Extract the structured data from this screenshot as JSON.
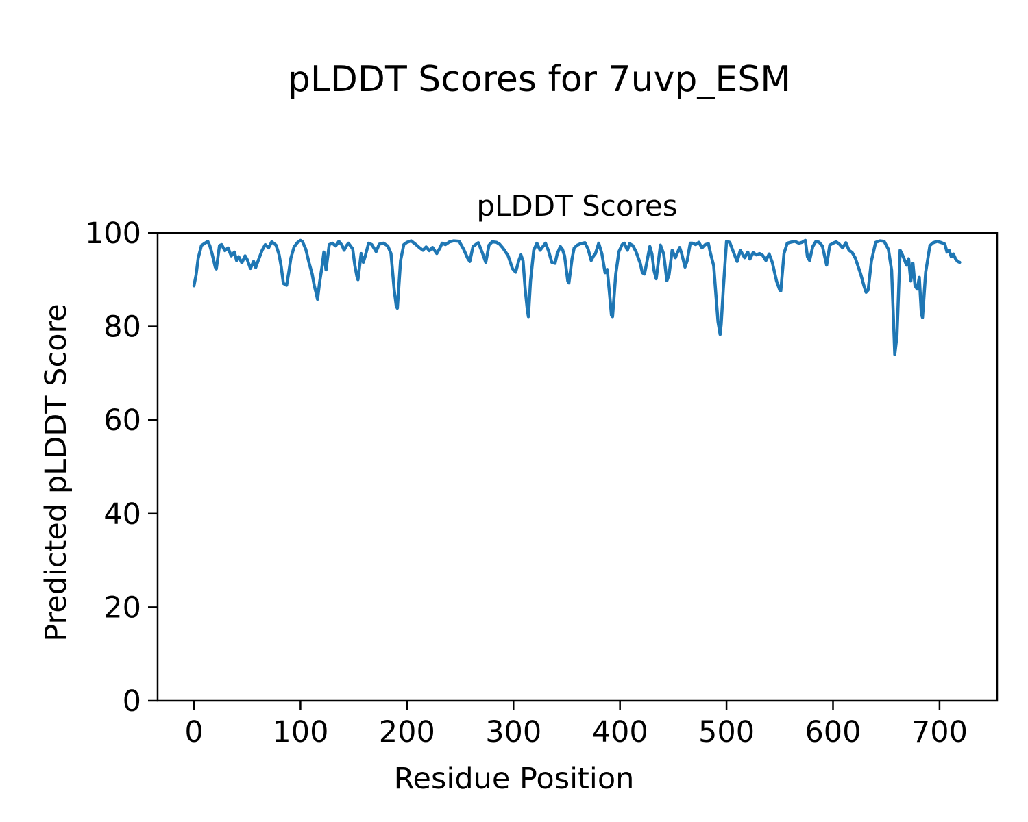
{
  "figure": {
    "suptitle": "pLDDT Scores for 7uvp_ESM",
    "background_color": "#ffffff",
    "text_color": "#000000"
  },
  "chart_data": {
    "type": "line",
    "title": "pLDDT Scores",
    "xlabel": "Residue Position",
    "ylabel": "Predicted pLDDT Score",
    "xlim": [
      -34.1,
      754.1
    ],
    "ylim": [
      0,
      100
    ],
    "xticks": [
      0,
      100,
      200,
      300,
      400,
      500,
      600,
      700
    ],
    "yticks": [
      0,
      20,
      40,
      60,
      80,
      100
    ],
    "grid": false,
    "legend_position": "none",
    "line_color": "#1f77b4",
    "spine_color": "#000000",
    "line_width": 4.5,
    "series": [
      {
        "name": "pLDDT",
        "points": [
          [
            0,
            88.7
          ],
          [
            2,
            91.0
          ],
          [
            4,
            94.6
          ],
          [
            7,
            97.3
          ],
          [
            9,
            97.6
          ],
          [
            13,
            98.2
          ],
          [
            15,
            97.2
          ],
          [
            17,
            95.6
          ],
          [
            20,
            92.7
          ],
          [
            21,
            92.3
          ],
          [
            24,
            97.3
          ],
          [
            26,
            97.5
          ],
          [
            29,
            96.2
          ],
          [
            32,
            96.8
          ],
          [
            35,
            95.1
          ],
          [
            38,
            95.9
          ],
          [
            40,
            94.1
          ],
          [
            42,
            94.9
          ],
          [
            45,
            93.6
          ],
          [
            48,
            95.1
          ],
          [
            50,
            94.3
          ],
          [
            53,
            92.4
          ],
          [
            56,
            93.9
          ],
          [
            58,
            92.6
          ],
          [
            61,
            94.5
          ],
          [
            64,
            96.3
          ],
          [
            67,
            97.5
          ],
          [
            70,
            96.8
          ],
          [
            73,
            98.1
          ],
          [
            77,
            97.4
          ],
          [
            80,
            95.3
          ],
          [
            82,
            92.7
          ],
          [
            84,
            89.2
          ],
          [
            87,
            88.8
          ],
          [
            89,
            91.5
          ],
          [
            91,
            94.6
          ],
          [
            94,
            97.0
          ],
          [
            97,
            97.9
          ],
          [
            100,
            98.4
          ],
          [
            102,
            98.1
          ],
          [
            105,
            96.5
          ],
          [
            108,
            93.7
          ],
          [
            111,
            91.2
          ],
          [
            113,
            88.7
          ],
          [
            115,
            86.9
          ],
          [
            116,
            85.8
          ],
          [
            118,
            89.5
          ],
          [
            120,
            92.4
          ],
          [
            122,
            95.9
          ],
          [
            124,
            92.1
          ],
          [
            127,
            97.5
          ],
          [
            130,
            97.8
          ],
          [
            133,
            97.2
          ],
          [
            136,
            98.2
          ],
          [
            139,
            97.4
          ],
          [
            141,
            96.3
          ],
          [
            143,
            97.2
          ],
          [
            145,
            97.8
          ],
          [
            149,
            96.6
          ],
          [
            151,
            93.1
          ],
          [
            153,
            90.7
          ],
          [
            154,
            90.0
          ],
          [
            157,
            95.6
          ],
          [
            159,
            93.7
          ],
          [
            161,
            95.2
          ],
          [
            164,
            97.8
          ],
          [
            167,
            97.5
          ],
          [
            171,
            96.0
          ],
          [
            174,
            97.6
          ],
          [
            178,
            97.8
          ],
          [
            182,
            97.2
          ],
          [
            185,
            95.6
          ],
          [
            188,
            87.8
          ],
          [
            190,
            84.3
          ],
          [
            191,
            83.9
          ],
          [
            194,
            94.1
          ],
          [
            197,
            97.5
          ],
          [
            200,
            98.0
          ],
          [
            204,
            98.3
          ],
          [
            209,
            97.4
          ],
          [
            212,
            96.8
          ],
          [
            215,
            96.3
          ],
          [
            218,
            97.0
          ],
          [
            221,
            96.2
          ],
          [
            224,
            96.9
          ],
          [
            228,
            95.6
          ],
          [
            231,
            96.8
          ],
          [
            233,
            97.8
          ],
          [
            236,
            97.5
          ],
          [
            240,
            98.1
          ],
          [
            244,
            98.3
          ],
          [
            249,
            98.2
          ],
          [
            253,
            96.6
          ],
          [
            257,
            94.6
          ],
          [
            259,
            93.9
          ],
          [
            262,
            97.1
          ],
          [
            265,
            97.6
          ],
          [
            267,
            97.9
          ],
          [
            271,
            95.6
          ],
          [
            274,
            93.7
          ],
          [
            277,
            97.4
          ],
          [
            280,
            98.1
          ],
          [
            284,
            98.0
          ],
          [
            287,
            97.6
          ],
          [
            290,
            96.8
          ],
          [
            295,
            95.1
          ],
          [
            299,
            92.4
          ],
          [
            302,
            91.6
          ],
          [
            305,
            94.1
          ],
          [
            307,
            95.3
          ],
          [
            309,
            94.0
          ],
          [
            311,
            88.0
          ],
          [
            313,
            83.5
          ],
          [
            314,
            82.1
          ],
          [
            316,
            89.7
          ],
          [
            319,
            96.3
          ],
          [
            322,
            97.8
          ],
          [
            325,
            96.3
          ],
          [
            328,
            97.2
          ],
          [
            330,
            97.8
          ],
          [
            333,
            96.1
          ],
          [
            336,
            93.7
          ],
          [
            339,
            93.5
          ],
          [
            341,
            95.5
          ],
          [
            344,
            97.1
          ],
          [
            346,
            96.5
          ],
          [
            348,
            95.1
          ],
          [
            351,
            89.7
          ],
          [
            352,
            89.3
          ],
          [
            355,
            94.5
          ],
          [
            357,
            96.8
          ],
          [
            360,
            97.4
          ],
          [
            363,
            97.7
          ],
          [
            367,
            97.9
          ],
          [
            370,
            96.6
          ],
          [
            373,
            94.1
          ],
          [
            375,
            95.0
          ],
          [
            377,
            95.6
          ],
          [
            380,
            97.8
          ],
          [
            383,
            95.6
          ],
          [
            386,
            91.5
          ],
          [
            388,
            92.2
          ],
          [
            390,
            87.5
          ],
          [
            392,
            82.4
          ],
          [
            393,
            82.1
          ],
          [
            396,
            91.2
          ],
          [
            399,
            96.0
          ],
          [
            402,
            97.5
          ],
          [
            404,
            97.8
          ],
          [
            407,
            96.3
          ],
          [
            409,
            97.7
          ],
          [
            412,
            97.3
          ],
          [
            415,
            96.0
          ],
          [
            419,
            93.5
          ],
          [
            421,
            91.5
          ],
          [
            423,
            91.2
          ],
          [
            425,
            93.5
          ],
          [
            428,
            97.1
          ],
          [
            430,
            95.5
          ],
          [
            432,
            91.9
          ],
          [
            434,
            90.2
          ],
          [
            438,
            97.4
          ],
          [
            441,
            95.5
          ],
          [
            444,
            89.8
          ],
          [
            446,
            91.0
          ],
          [
            449,
            96.3
          ],
          [
            452,
            94.7
          ],
          [
            456,
            96.9
          ],
          [
            458,
            95.5
          ],
          [
            461,
            92.7
          ],
          [
            463,
            94.0
          ],
          [
            466,
            97.8
          ],
          [
            468,
            97.8
          ],
          [
            471,
            97.5
          ],
          [
            474,
            98.0
          ],
          [
            477,
            96.8
          ],
          [
            480,
            97.5
          ],
          [
            483,
            97.7
          ],
          [
            485,
            95.6
          ],
          [
            488,
            93.0
          ],
          [
            490,
            87.0
          ],
          [
            492,
            81.0
          ],
          [
            494,
            78.3
          ],
          [
            495,
            80.5
          ],
          [
            497,
            88.0
          ],
          [
            500,
            98.2
          ],
          [
            503,
            98.0
          ],
          [
            507,
            95.6
          ],
          [
            510,
            93.9
          ],
          [
            513,
            96.3
          ],
          [
            517,
            94.7
          ],
          [
            520,
            95.9
          ],
          [
            522,
            94.4
          ],
          [
            525,
            95.8
          ],
          [
            528,
            95.3
          ],
          [
            531,
            95.6
          ],
          [
            534,
            95.2
          ],
          [
            537,
            94.1
          ],
          [
            540,
            95.5
          ],
          [
            543,
            93.7
          ],
          [
            547,
            89.7
          ],
          [
            550,
            87.8
          ],
          [
            551,
            87.6
          ],
          [
            554,
            95.6
          ],
          [
            557,
            97.8
          ],
          [
            560,
            98.0
          ],
          [
            564,
            98.2
          ],
          [
            568,
            97.8
          ],
          [
            571,
            98.0
          ],
          [
            574,
            98.4
          ],
          [
            576,
            94.9
          ],
          [
            578,
            94.1
          ],
          [
            581,
            97.1
          ],
          [
            584,
            98.2
          ],
          [
            587,
            98.0
          ],
          [
            590,
            97.2
          ],
          [
            594,
            93.1
          ],
          [
            597,
            97.4
          ],
          [
            600,
            97.8
          ],
          [
            603,
            98.1
          ],
          [
            606,
            97.6
          ],
          [
            609,
            96.8
          ],
          [
            612,
            97.9
          ],
          [
            615,
            96.3
          ],
          [
            618,
            95.8
          ],
          [
            621,
            94.6
          ],
          [
            626,
            91.2
          ],
          [
            629,
            88.7
          ],
          [
            631,
            87.3
          ],
          [
            633,
            87.8
          ],
          [
            636,
            94.0
          ],
          [
            640,
            98.0
          ],
          [
            644,
            98.3
          ],
          [
            648,
            98.2
          ],
          [
            652,
            96.5
          ],
          [
            655,
            92.0
          ],
          [
            657,
            80.0
          ],
          [
            658,
            74.0
          ],
          [
            660,
            78.0
          ],
          [
            663,
            96.3
          ],
          [
            665,
            95.4
          ],
          [
            667,
            94.3
          ],
          [
            669,
            93.1
          ],
          [
            671,
            94.5
          ],
          [
            673,
            89.7
          ],
          [
            675,
            93.5
          ],
          [
            677,
            88.7
          ],
          [
            679,
            88.0
          ],
          [
            681,
            90.5
          ],
          [
            683,
            82.6
          ],
          [
            684,
            81.9
          ],
          [
            687,
            91.6
          ],
          [
            691,
            97.3
          ],
          [
            694,
            97.9
          ],
          [
            698,
            98.2
          ],
          [
            702,
            97.9
          ],
          [
            705,
            97.6
          ],
          [
            707,
            95.9
          ],
          [
            709,
            96.3
          ],
          [
            711,
            94.9
          ],
          [
            713,
            95.5
          ],
          [
            715,
            94.5
          ],
          [
            717,
            93.9
          ],
          [
            719,
            93.7
          ]
        ]
      }
    ]
  }
}
